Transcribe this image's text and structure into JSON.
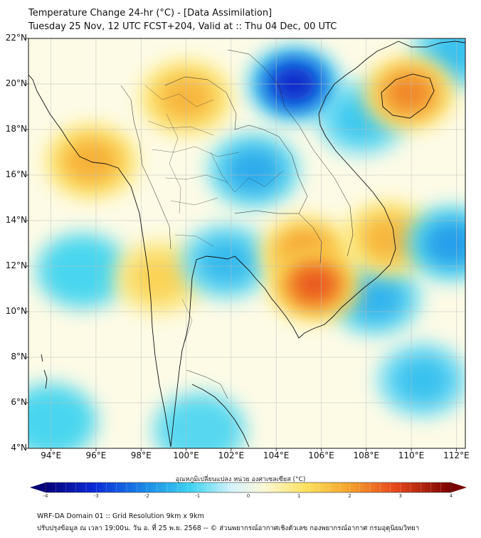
{
  "title": {
    "line1": "Temperature Change 24-hr (°C) - [Data Assimilation]",
    "line2": "Tuesday 25 Nov, 12 UTC FCST+204, Valid at :: Thu 04 Dec, 00 UTC"
  },
  "axes": {
    "y_labels": [
      "22°N",
      "20°N",
      "18°N",
      "16°N",
      "14°N",
      "12°N",
      "10°N",
      "8°N",
      "6°N",
      "4°N"
    ],
    "x_labels": [
      "94°E",
      "96°E",
      "98°E",
      "100°E",
      "102°E",
      "104°E",
      "106°E",
      "108°E",
      "110°E",
      "112°E"
    ]
  },
  "colorbar": {
    "label": "อุณหภูมิเปลี่ยนแปลง หน่วย องศาเซลเซียส (°C)",
    "ticks": [
      "-4",
      "-3",
      "-2",
      "-1",
      "0",
      "1",
      "2",
      "3",
      "4"
    ],
    "min": -4,
    "max": 4
  },
  "footer": {
    "line1": "WRF-DA Domain 01 :: Grid Resolution 9km x 9km",
    "line2": "ปรับปรุงข้อมูล ณ เวลา 19:00น. วัน อ. ที่ 25 พ.ย. 2568 -- © ส่วนพยากรณ์อากาศเชิงตัวเลข กองพยากรณ์อากาศ กรมอุตุนิยมวิทยา"
  },
  "anomalies": [
    {
      "name": "hot-cambodia",
      "lon": 105.7,
      "lat": 11.2,
      "value": 2.9
    },
    {
      "name": "warm-cambodia-north",
      "lon": 105.3,
      "lat": 12.6,
      "value": 2.2
    },
    {
      "name": "warm-hainan",
      "lon": 109.9,
      "lat": 19.6,
      "value": 2.4
    },
    {
      "name": "warm-vietnam-coast",
      "lon": 109.0,
      "lat": 13.2,
      "value": 1.8
    },
    {
      "name": "warm-myanmar-west",
      "lon": 95.8,
      "lat": 16.6,
      "value": 1.9
    },
    {
      "name": "warm-north-thailand",
      "lon": 100.0,
      "lat": 19.4,
      "value": 1.8
    },
    {
      "name": "warm-west-thailand",
      "lon": 98.8,
      "lat": 11.5,
      "value": 1.3
    },
    {
      "name": "cold-laos-vietnam",
      "lon": 104.8,
      "lat": 20.0,
      "value": -3.2
    },
    {
      "name": "cool-isan",
      "lon": 103.0,
      "lat": 16.2,
      "value": -1.6
    },
    {
      "name": "cool-gulf-thailand",
      "lon": 101.8,
      "lat": 12.2,
      "value": -1.4
    },
    {
      "name": "cool-east-sea",
      "lon": 111.8,
      "lat": 13.0,
      "value": -1.8
    },
    {
      "name": "cool-south-vietnam-sea",
      "lon": 108.4,
      "lat": 10.6,
      "value": -1.5
    },
    {
      "name": "cool-south-china-sea",
      "lon": 110.5,
      "lat": 7.0,
      "value": -1.3
    },
    {
      "name": "cool-andaman",
      "lon": 95.4,
      "lat": 11.8,
      "value": -1.0
    },
    {
      "name": "cool-bottom-left",
      "lon": 94.0,
      "lat": 5.2,
      "value": -1.0
    },
    {
      "name": "cool-malaysia",
      "lon": 100.6,
      "lat": 4.8,
      "value": -0.9
    },
    {
      "name": "cool-gulf-tonkin",
      "lon": 107.8,
      "lat": 18.5,
      "value": -1.2
    },
    {
      "name": "cool-north-east",
      "lon": 112.0,
      "lat": 21.4,
      "value": -1.3
    }
  ]
}
